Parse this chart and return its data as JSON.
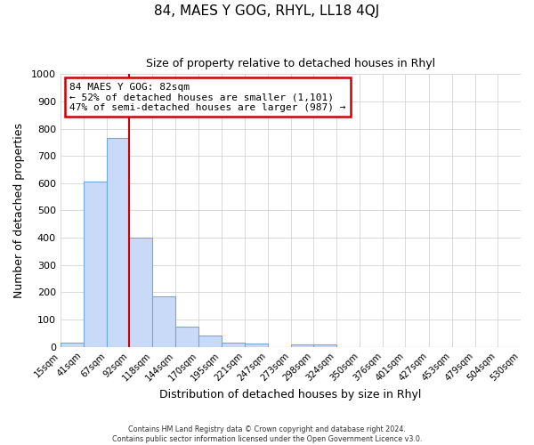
{
  "title": "84, MAES Y GOG, RHYL, LL18 4QJ",
  "subtitle": "Size of property relative to detached houses in Rhyl",
  "xlabel": "Distribution of detached houses by size in Rhyl",
  "ylabel": "Number of detached properties",
  "bar_labels": [
    "15sqm",
    "41sqm",
    "67sqm",
    "92sqm",
    "118sqm",
    "144sqm",
    "170sqm",
    "195sqm",
    "221sqm",
    "247sqm",
    "273sqm",
    "298sqm",
    "324sqm",
    "350sqm",
    "376sqm",
    "401sqm",
    "427sqm",
    "453sqm",
    "479sqm",
    "504sqm",
    "530sqm"
  ],
  "bar_values": [
    15,
    605,
    765,
    400,
    185,
    75,
    40,
    15,
    12,
    0,
    10,
    8,
    0,
    0,
    0,
    0,
    0,
    0,
    0,
    0,
    0
  ],
  "bar_color": "#c9daf8",
  "bar_edge_color": "#6fa8dc",
  "ylim": [
    0,
    1000
  ],
  "yticks": [
    0,
    100,
    200,
    300,
    400,
    500,
    600,
    700,
    800,
    900,
    1000
  ],
  "annotation_box_text": [
    "84 MAES Y GOG: 82sqm",
    "← 52% of detached houses are smaller (1,101)",
    "47% of semi-detached houses are larger (987) →"
  ],
  "annotation_box_color": "#ffffff",
  "annotation_box_edge_color": "#cc0000",
  "red_line_x": 92,
  "red_line_color": "#cc0000",
  "footer_lines": [
    "Contains HM Land Registry data © Crown copyright and database right 2024.",
    "Contains public sector information licensed under the Open Government Licence v3.0."
  ],
  "background_color": "#ffffff",
  "grid_color": "#cccccc"
}
